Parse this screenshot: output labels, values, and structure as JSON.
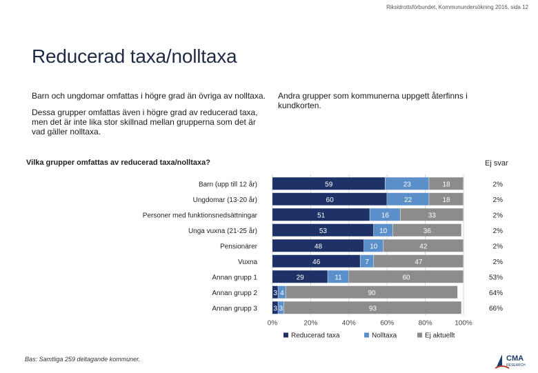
{
  "header": {
    "source_note": "Riksidrottsförbundet, Kommunundersökning 2016, sida 12"
  },
  "page_title": "Reducerad taxa/nolltaxa",
  "left_column": {
    "paragraph_1": "Barn och ungdomar omfattas i högre grad än övriga av nolltaxa.",
    "paragraph_2": "Dessa grupper omfattas även i högre grad av reducerad taxa, men det är inte lika stor skillnad mellan grupperna som det är vad gäller nolltaxa."
  },
  "right_column": {
    "paragraph_1": "Andra grupper som kommunerna uppgett återfinns i kundkorten."
  },
  "footnote": "Bas: Samtliga 259 deltagande kommuner.",
  "logo": {
    "text": "CMA",
    "subtext": "RESEARCH"
  },
  "chart_data": {
    "type": "bar",
    "orientation": "horizontal",
    "stacked": true,
    "title": "Vilka grupper omfattas av reducerad taxa/nolltaxa?",
    "side_column_header": "Ej svar",
    "categories": [
      "Barn (upp till 12 år)",
      "Ungdomar (13-20 år)",
      "Personer med funktionsnedsättningar",
      "Unga vuxna (21-25 år)",
      "Pensionärer",
      "Vuxna",
      "Annan grupp 1",
      "Annan grupp 2",
      "Annan grupp 3"
    ],
    "series": [
      {
        "name": "Reducerad taxa",
        "color": "#1f3267",
        "values": [
          59,
          60,
          51,
          53,
          48,
          46,
          29,
          3,
          3
        ]
      },
      {
        "name": "Nolltaxa",
        "color": "#5b8fc9",
        "values": [
          23,
          22,
          16,
          10,
          10,
          7,
          11,
          4,
          3
        ]
      },
      {
        "name": "Ej aktuellt",
        "color": "#8c8c8c",
        "values": [
          18,
          18,
          33,
          36,
          42,
          47,
          60,
          90,
          93
        ]
      }
    ],
    "ej_svar": [
      "2%",
      "2%",
      "2%",
      "2%",
      "2%",
      "2%",
      "53%",
      "64%",
      "66%"
    ],
    "x_ticks": [
      "0%",
      "20%",
      "40%",
      "60%",
      "80%",
      "100%"
    ],
    "xlim": [
      0,
      100
    ],
    "legend_position": "bottom",
    "grid": true
  }
}
